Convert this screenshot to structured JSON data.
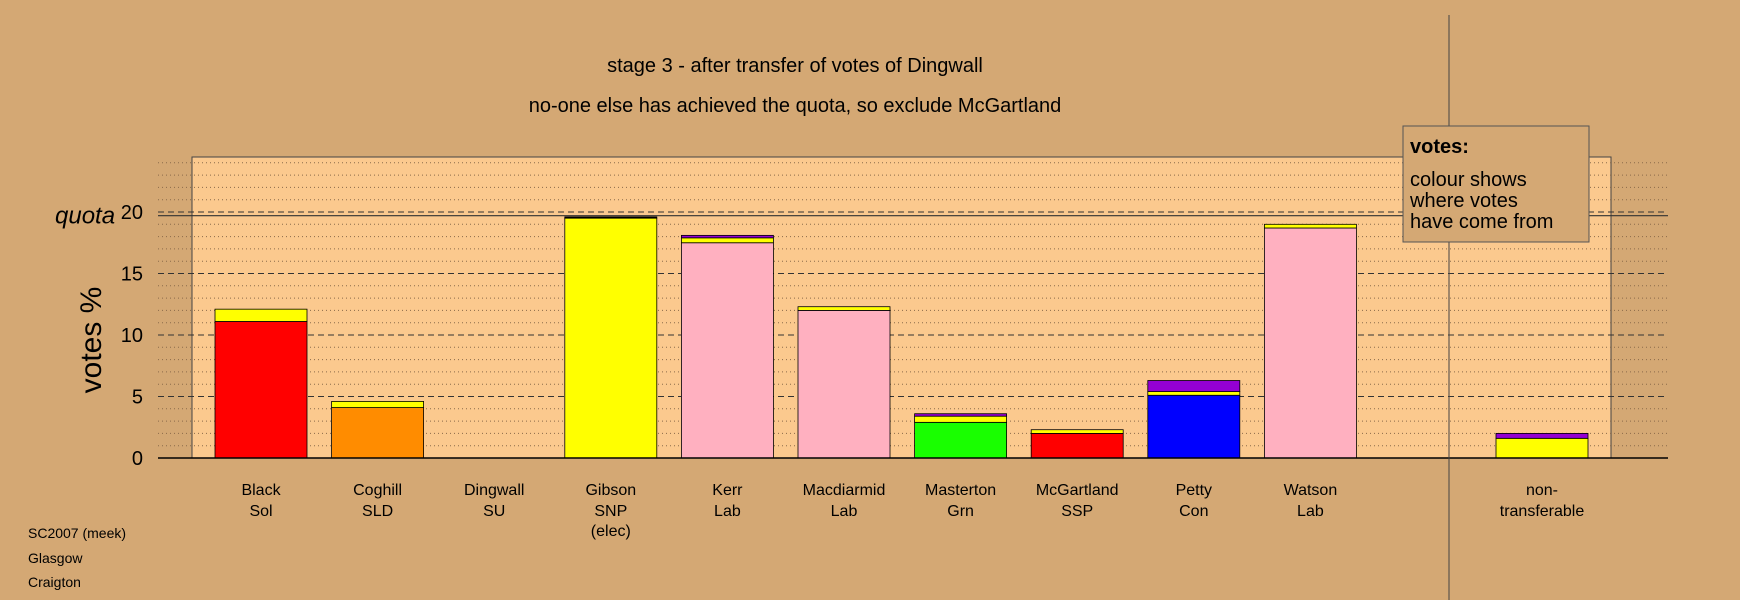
{
  "chart_data": {
    "type": "bar",
    "stacked": true,
    "title": "stage 3 - after transfer of votes of Dingwall",
    "subtitle": "no-one else has achieved the quota, so exclude McGartland",
    "ylabel": "votes %",
    "ylim": [
      0,
      25
    ],
    "yticks": [
      0,
      5,
      10,
      15,
      20
    ],
    "grid": true,
    "quota": {
      "label": "quota",
      "value": 19.7
    },
    "legend": {
      "title": "votes:",
      "lines": [
        "colour shows",
        "where votes",
        "have come from"
      ],
      "position": "top-right"
    },
    "colors": {
      "background": "#d4a874",
      "plot_background": "#fbc98e",
      "red": "#ff0000",
      "orange": "#ff8c00",
      "yellow": "#ffff00",
      "pink": "#ffb0c0",
      "green": "#19ff00",
      "blue": "#0000ff",
      "purple": "#9400d3",
      "dark": "#000000"
    },
    "candidates": [
      {
        "name": "Black",
        "party": "Sol",
        "note": "",
        "segments": [
          {
            "color": "red",
            "value": 11.1
          },
          {
            "color": "yellow",
            "value": 1.0
          }
        ]
      },
      {
        "name": "Coghill",
        "party": "SLD",
        "note": "",
        "segments": [
          {
            "color": "orange",
            "value": 4.1
          },
          {
            "color": "yellow",
            "value": 0.5
          }
        ]
      },
      {
        "name": "Dingwall",
        "party": "SU",
        "note": "",
        "segments": []
      },
      {
        "name": "Gibson",
        "party": "SNP",
        "note": "(elec)",
        "segments": [
          {
            "color": "yellow",
            "value": 19.5
          },
          {
            "color": "dark",
            "value": 0.1
          }
        ]
      },
      {
        "name": "Kerr",
        "party": "Lab",
        "note": "",
        "segments": [
          {
            "color": "pink",
            "value": 17.5
          },
          {
            "color": "yellow",
            "value": 0.4
          },
          {
            "color": "purple",
            "value": 0.2
          }
        ]
      },
      {
        "name": "Macdiarmid",
        "party": "Lab",
        "note": "",
        "segments": [
          {
            "color": "pink",
            "value": 12.0
          },
          {
            "color": "yellow",
            "value": 0.3
          }
        ]
      },
      {
        "name": "Masterton",
        "party": "Grn",
        "note": "",
        "segments": [
          {
            "color": "green",
            "value": 2.9
          },
          {
            "color": "yellow",
            "value": 0.5
          },
          {
            "color": "purple",
            "value": 0.2
          }
        ]
      },
      {
        "name": "McGartland",
        "party": "SSP",
        "note": "",
        "segments": [
          {
            "color": "red",
            "value": 2.0
          },
          {
            "color": "yellow",
            "value": 0.3
          }
        ]
      },
      {
        "name": "Petty",
        "party": "Con",
        "note": "",
        "segments": [
          {
            "color": "blue",
            "value": 5.1
          },
          {
            "color": "yellow",
            "value": 0.3
          },
          {
            "color": "purple",
            "value": 0.9
          }
        ]
      },
      {
        "name": "Watson",
        "party": "Lab",
        "note": "",
        "segments": [
          {
            "color": "pink",
            "value": 18.7
          },
          {
            "color": "yellow",
            "value": 0.3
          }
        ]
      }
    ],
    "non_transferable": {
      "label_lines": [
        "non-",
        "transferable"
      ],
      "segments": [
        {
          "color": "yellow",
          "value": 1.6
        },
        {
          "color": "purple",
          "value": 0.4
        }
      ]
    }
  },
  "footer": {
    "line1": "SC2007 (meek)",
    "line2": "Glasgow",
    "line3": "Craigton"
  }
}
